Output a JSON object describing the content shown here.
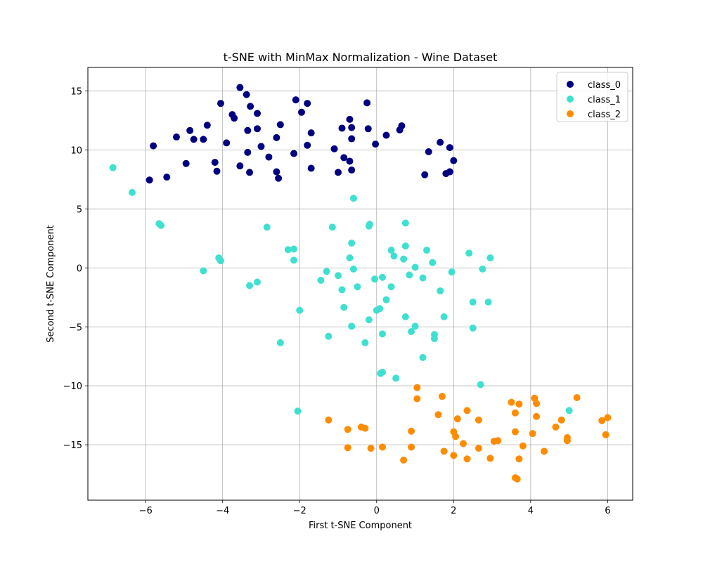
{
  "chart_data": {
    "type": "scatter",
    "title": "t-SNE with MinMax Normalization - Wine Dataset",
    "xlabel": "First t-SNE Component",
    "ylabel": "Second t-SNE Component",
    "xlim": [
      -7.5,
      6.65
    ],
    "ylim": [
      -19.7,
      17
    ],
    "xticks": [
      -6,
      -4,
      -2,
      0,
      2,
      4,
      6
    ],
    "yticks": [
      -15,
      -10,
      -5,
      0,
      5,
      10,
      15
    ],
    "grid": true,
    "legend_position": "top-right",
    "series": [
      {
        "name": "class_0",
        "color": "#000080",
        "points": [
          [
            -3.55,
            15.3
          ],
          [
            -3.38,
            14.7
          ],
          [
            -2.1,
            14.25
          ],
          [
            -4.05,
            13.95
          ],
          [
            -1.8,
            13.95
          ],
          [
            -0.25,
            14.0
          ],
          [
            -3.28,
            13.7
          ],
          [
            -3.75,
            13.0
          ],
          [
            -3.1,
            13.1
          ],
          [
            -1.95,
            13.2
          ],
          [
            -3.7,
            12.7
          ],
          [
            -0.7,
            12.6
          ],
          [
            -4.4,
            12.1
          ],
          [
            -2.5,
            12.15
          ],
          [
            -0.65,
            11.9
          ],
          [
            -0.9,
            11.85
          ],
          [
            -0.22,
            11.8
          ],
          [
            0.65,
            12.05
          ],
          [
            0.6,
            11.7
          ],
          [
            -4.85,
            11.65
          ],
          [
            -3.35,
            11.65
          ],
          [
            -3.1,
            11.8
          ],
          [
            -1.7,
            11.45
          ],
          [
            -5.2,
            11.1
          ],
          [
            -2.6,
            11.05
          ],
          [
            -4.75,
            10.9
          ],
          [
            -4.5,
            10.9
          ],
          [
            -0.65,
            10.95
          ],
          [
            0.25,
            11.25
          ],
          [
            -5.8,
            10.35
          ],
          [
            -3.9,
            10.6
          ],
          [
            -3.0,
            10.3
          ],
          [
            -1.8,
            10.4
          ],
          [
            -1.1,
            10.1
          ],
          [
            -0.03,
            10.5
          ],
          [
            1.65,
            10.65
          ],
          [
            1.9,
            10.2
          ],
          [
            -3.35,
            9.8
          ],
          [
            -2.15,
            9.7
          ],
          [
            -0.85,
            9.35
          ],
          [
            -2.8,
            9.4
          ],
          [
            1.35,
            9.85
          ],
          [
            -4.2,
            8.95
          ],
          [
            -4.95,
            8.85
          ],
          [
            -0.7,
            9.05
          ],
          [
            2.0,
            9.1
          ],
          [
            -3.55,
            8.65
          ],
          [
            -1.7,
            8.45
          ],
          [
            -4.15,
            8.2
          ],
          [
            -3.3,
            8.1
          ],
          [
            -2.6,
            8.15
          ],
          [
            -0.65,
            8.3
          ],
          [
            -1.0,
            8.1
          ],
          [
            1.25,
            7.9
          ],
          [
            1.8,
            8.0
          ],
          [
            1.9,
            8.15
          ],
          [
            -5.9,
            7.45
          ],
          [
            -5.45,
            7.7
          ],
          [
            -2.55,
            7.6
          ]
        ]
      },
      {
        "name": "class_1",
        "color": "#40e0d0",
        "points": [
          [
            -6.85,
            8.5
          ],
          [
            -6.35,
            6.4
          ],
          [
            -0.6,
            5.9
          ],
          [
            -5.65,
            3.75
          ],
          [
            -5.6,
            3.6
          ],
          [
            -2.85,
            3.45
          ],
          [
            -1.15,
            3.45
          ],
          [
            -0.2,
            3.55
          ],
          [
            -0.18,
            3.7
          ],
          [
            0.75,
            3.8
          ],
          [
            -0.65,
            2.1
          ],
          [
            0.75,
            1.85
          ],
          [
            -2.3,
            1.55
          ],
          [
            -2.15,
            1.6
          ],
          [
            0.38,
            1.5
          ],
          [
            1.3,
            1.5
          ],
          [
            2.4,
            1.25
          ],
          [
            -4.1,
            0.85
          ],
          [
            -4.05,
            0.6
          ],
          [
            -2.15,
            0.65
          ],
          [
            -0.7,
            0.85
          ],
          [
            0.45,
            1.0
          ],
          [
            0.7,
            0.75
          ],
          [
            2.95,
            0.85
          ],
          [
            1.45,
            0.45
          ],
          [
            -4.5,
            -0.25
          ],
          [
            -1.3,
            -0.3
          ],
          [
            -0.6,
            -0.1
          ],
          [
            1.0,
            0.05
          ],
          [
            1.95,
            -0.35
          ],
          [
            2.75,
            -0.1
          ],
          [
            -1.45,
            -1.05
          ],
          [
            -1.0,
            -0.65
          ],
          [
            -0.05,
            -0.95
          ],
          [
            0.15,
            -0.8
          ],
          [
            0.85,
            -0.6
          ],
          [
            1.2,
            -0.85
          ],
          [
            -3.3,
            -1.5
          ],
          [
            -3.1,
            -1.2
          ],
          [
            -0.9,
            -1.85
          ],
          [
            -0.5,
            -1.6
          ],
          [
            0.38,
            -1.6
          ],
          [
            1.65,
            -1.95
          ],
          [
            2.5,
            -2.9
          ],
          [
            2.9,
            -2.9
          ],
          [
            -0.85,
            -3.35
          ],
          [
            0.25,
            -2.7
          ],
          [
            -2.0,
            -3.6
          ],
          [
            0.0,
            -3.6
          ],
          [
            0.08,
            -3.45
          ],
          [
            0.75,
            -4.15
          ],
          [
            1.75,
            -4.15
          ],
          [
            -0.2,
            -4.4
          ],
          [
            -0.65,
            -4.95
          ],
          [
            1.0,
            -4.95
          ],
          [
            2.5,
            -5.1
          ],
          [
            0.9,
            -5.4
          ],
          [
            1.5,
            -5.65
          ],
          [
            1.5,
            -6.0
          ],
          [
            -1.25,
            -5.8
          ],
          [
            0.15,
            -5.6
          ],
          [
            -0.3,
            -6.35
          ],
          [
            -2.5,
            -6.35
          ],
          [
            1.2,
            -7.6
          ],
          [
            0.5,
            -9.35
          ],
          [
            0.1,
            -8.95
          ],
          [
            0.15,
            -8.85
          ],
          [
            2.7,
            -9.9
          ],
          [
            -2.05,
            -12.15
          ],
          [
            5.0,
            -12.1
          ]
        ]
      },
      {
        "name": "class_2",
        "color": "#ff8c00",
        "points": [
          [
            1.05,
            -10.15
          ],
          [
            1.05,
            -11.1
          ],
          [
            1.7,
            -10.9
          ],
          [
            4.1,
            -11.05
          ],
          [
            5.2,
            -11.0
          ],
          [
            3.5,
            -11.4
          ],
          [
            3.7,
            -11.55
          ],
          [
            4.15,
            -11.5
          ],
          [
            2.35,
            -12.1
          ],
          [
            3.6,
            -12.3
          ],
          [
            1.6,
            -12.45
          ],
          [
            2.1,
            -12.8
          ],
          [
            2.65,
            -12.9
          ],
          [
            4.15,
            -12.6
          ],
          [
            4.8,
            -12.9
          ],
          [
            5.85,
            -12.95
          ],
          [
            6.0,
            -12.7
          ],
          [
            -1.25,
            -12.9
          ],
          [
            -0.75,
            -13.7
          ],
          [
            -0.4,
            -13.5
          ],
          [
            -0.3,
            -13.6
          ],
          [
            0.9,
            -13.85
          ],
          [
            2.0,
            -13.9
          ],
          [
            2.05,
            -14.3
          ],
          [
            3.6,
            -13.9
          ],
          [
            4.65,
            -13.5
          ],
          [
            4.05,
            -14.05
          ],
          [
            4.95,
            -14.4
          ],
          [
            4.95,
            -14.65
          ],
          [
            5.95,
            -14.15
          ],
          [
            2.25,
            -14.9
          ],
          [
            3.05,
            -14.7
          ],
          [
            3.15,
            -14.65
          ],
          [
            -0.75,
            -15.25
          ],
          [
            -0.15,
            -15.3
          ],
          [
            0.15,
            -15.2
          ],
          [
            0.9,
            -15.2
          ],
          [
            1.75,
            -15.55
          ],
          [
            2.65,
            -15.3
          ],
          [
            3.8,
            -15.1
          ],
          [
            4.35,
            -15.55
          ],
          [
            2.0,
            -15.9
          ],
          [
            2.35,
            -16.2
          ],
          [
            2.95,
            -16.15
          ],
          [
            3.7,
            -16.2
          ],
          [
            0.7,
            -16.3
          ],
          [
            3.6,
            -17.8
          ],
          [
            3.65,
            -17.9
          ]
        ]
      }
    ]
  }
}
